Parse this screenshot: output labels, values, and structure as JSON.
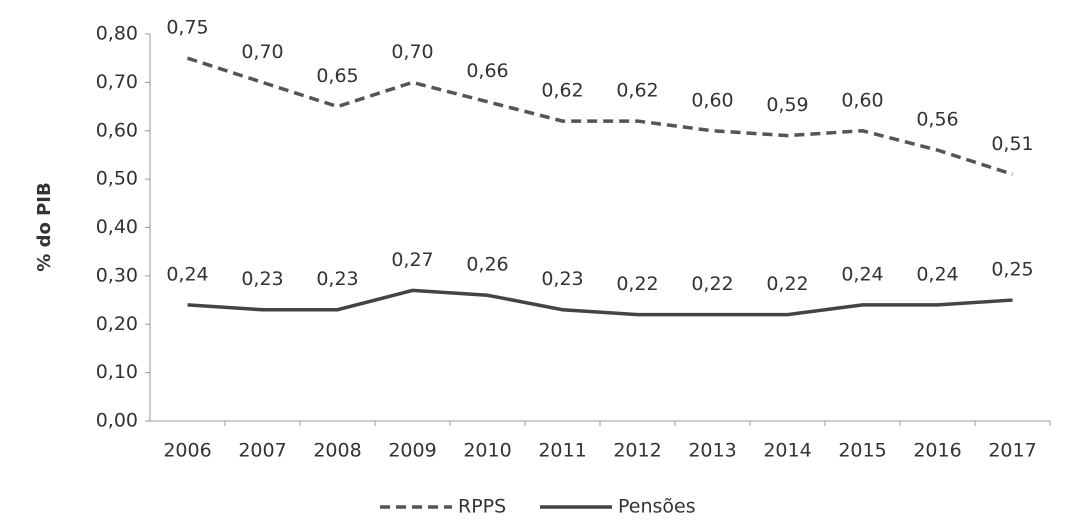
{
  "chart_data": {
    "type": "line",
    "y_label": "% do PIB",
    "categories": [
      "2006",
      "2007",
      "2008",
      "2009",
      "2010",
      "2011",
      "2012",
      "2013",
      "2014",
      "2015",
      "2016",
      "2017"
    ],
    "series": [
      {
        "name": "RPPS",
        "color": "#555555",
        "dashed": true,
        "values": [
          0.75,
          0.7,
          0.65,
          0.7,
          0.66,
          0.62,
          0.62,
          0.6,
          0.59,
          0.6,
          0.56,
          0.51
        ],
        "value_labels": [
          "0,75",
          "0,70",
          "0,65",
          "0,70",
          "0,66",
          "0,62",
          "0,62",
          "0,60",
          "0,59",
          "0,60",
          "0,56",
          "0,51"
        ]
      },
      {
        "name": "Pensões",
        "color": "#444444",
        "dashed": false,
        "values": [
          0.24,
          0.23,
          0.23,
          0.27,
          0.26,
          0.23,
          0.22,
          0.22,
          0.22,
          0.24,
          0.24,
          0.25
        ],
        "value_labels": [
          "0,24",
          "0,23",
          "0,23",
          "0,27",
          "0,26",
          "0,23",
          "0,22",
          "0,22",
          "0,22",
          "0,24",
          "0,24",
          "0,25"
        ]
      }
    ],
    "ylim": [
      0,
      0.8
    ],
    "yticks": [
      {
        "value": 0,
        "label": "0,00"
      },
      {
        "value": 0.1,
        "label": "0,10"
      },
      {
        "value": 0.2,
        "label": "0,20"
      },
      {
        "value": 0.3,
        "label": "0,30"
      },
      {
        "value": 0.4,
        "label": "0,40"
      },
      {
        "value": 0.5,
        "label": "0,50"
      },
      {
        "value": 0.6,
        "label": "0,60"
      },
      {
        "value": 0.7,
        "label": "0,70"
      },
      {
        "value": 0.8,
        "label": "0,80"
      }
    ],
    "grid": false,
    "legend": "bottom"
  }
}
